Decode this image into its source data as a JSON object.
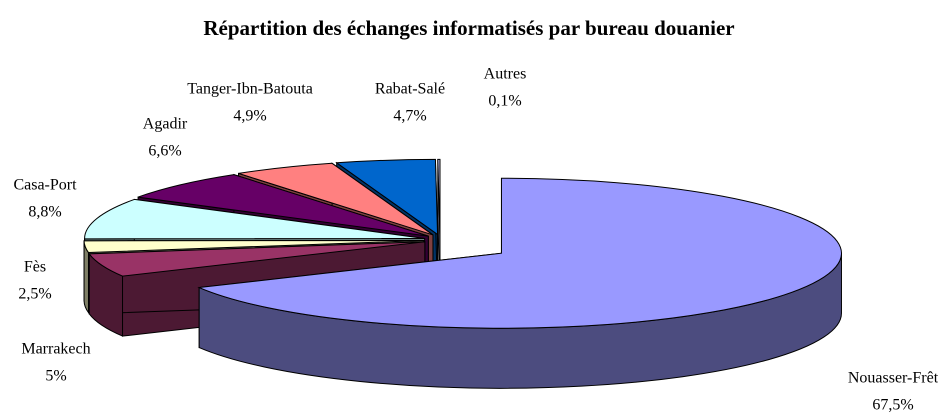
{
  "chart_data": {
    "type": "pie3d",
    "title": "Répartition des échanges informatisés par bureau douanier",
    "categories": [
      "Nouasser-Frêt",
      "Marrakech",
      "Fès",
      "Casa-Port",
      "Agadir",
      "Tanger-Ibn-Batouta",
      "Rabat-Salé",
      "Autres"
    ],
    "values": [
      67.5,
      5,
      2.5,
      8.8,
      6.6,
      4.9,
      4.7,
      0.1
    ],
    "value_labels": [
      "67,5%",
      "5%",
      "2,5%",
      "8,8%",
      "6,6%",
      "4,9%",
      "4,7%",
      "0,1%"
    ],
    "colors": [
      "#9999ff",
      "#993366",
      "#ffffcc",
      "#ccffff",
      "#660066",
      "#ff8080",
      "#0066cc",
      "#ccccff"
    ]
  }
}
